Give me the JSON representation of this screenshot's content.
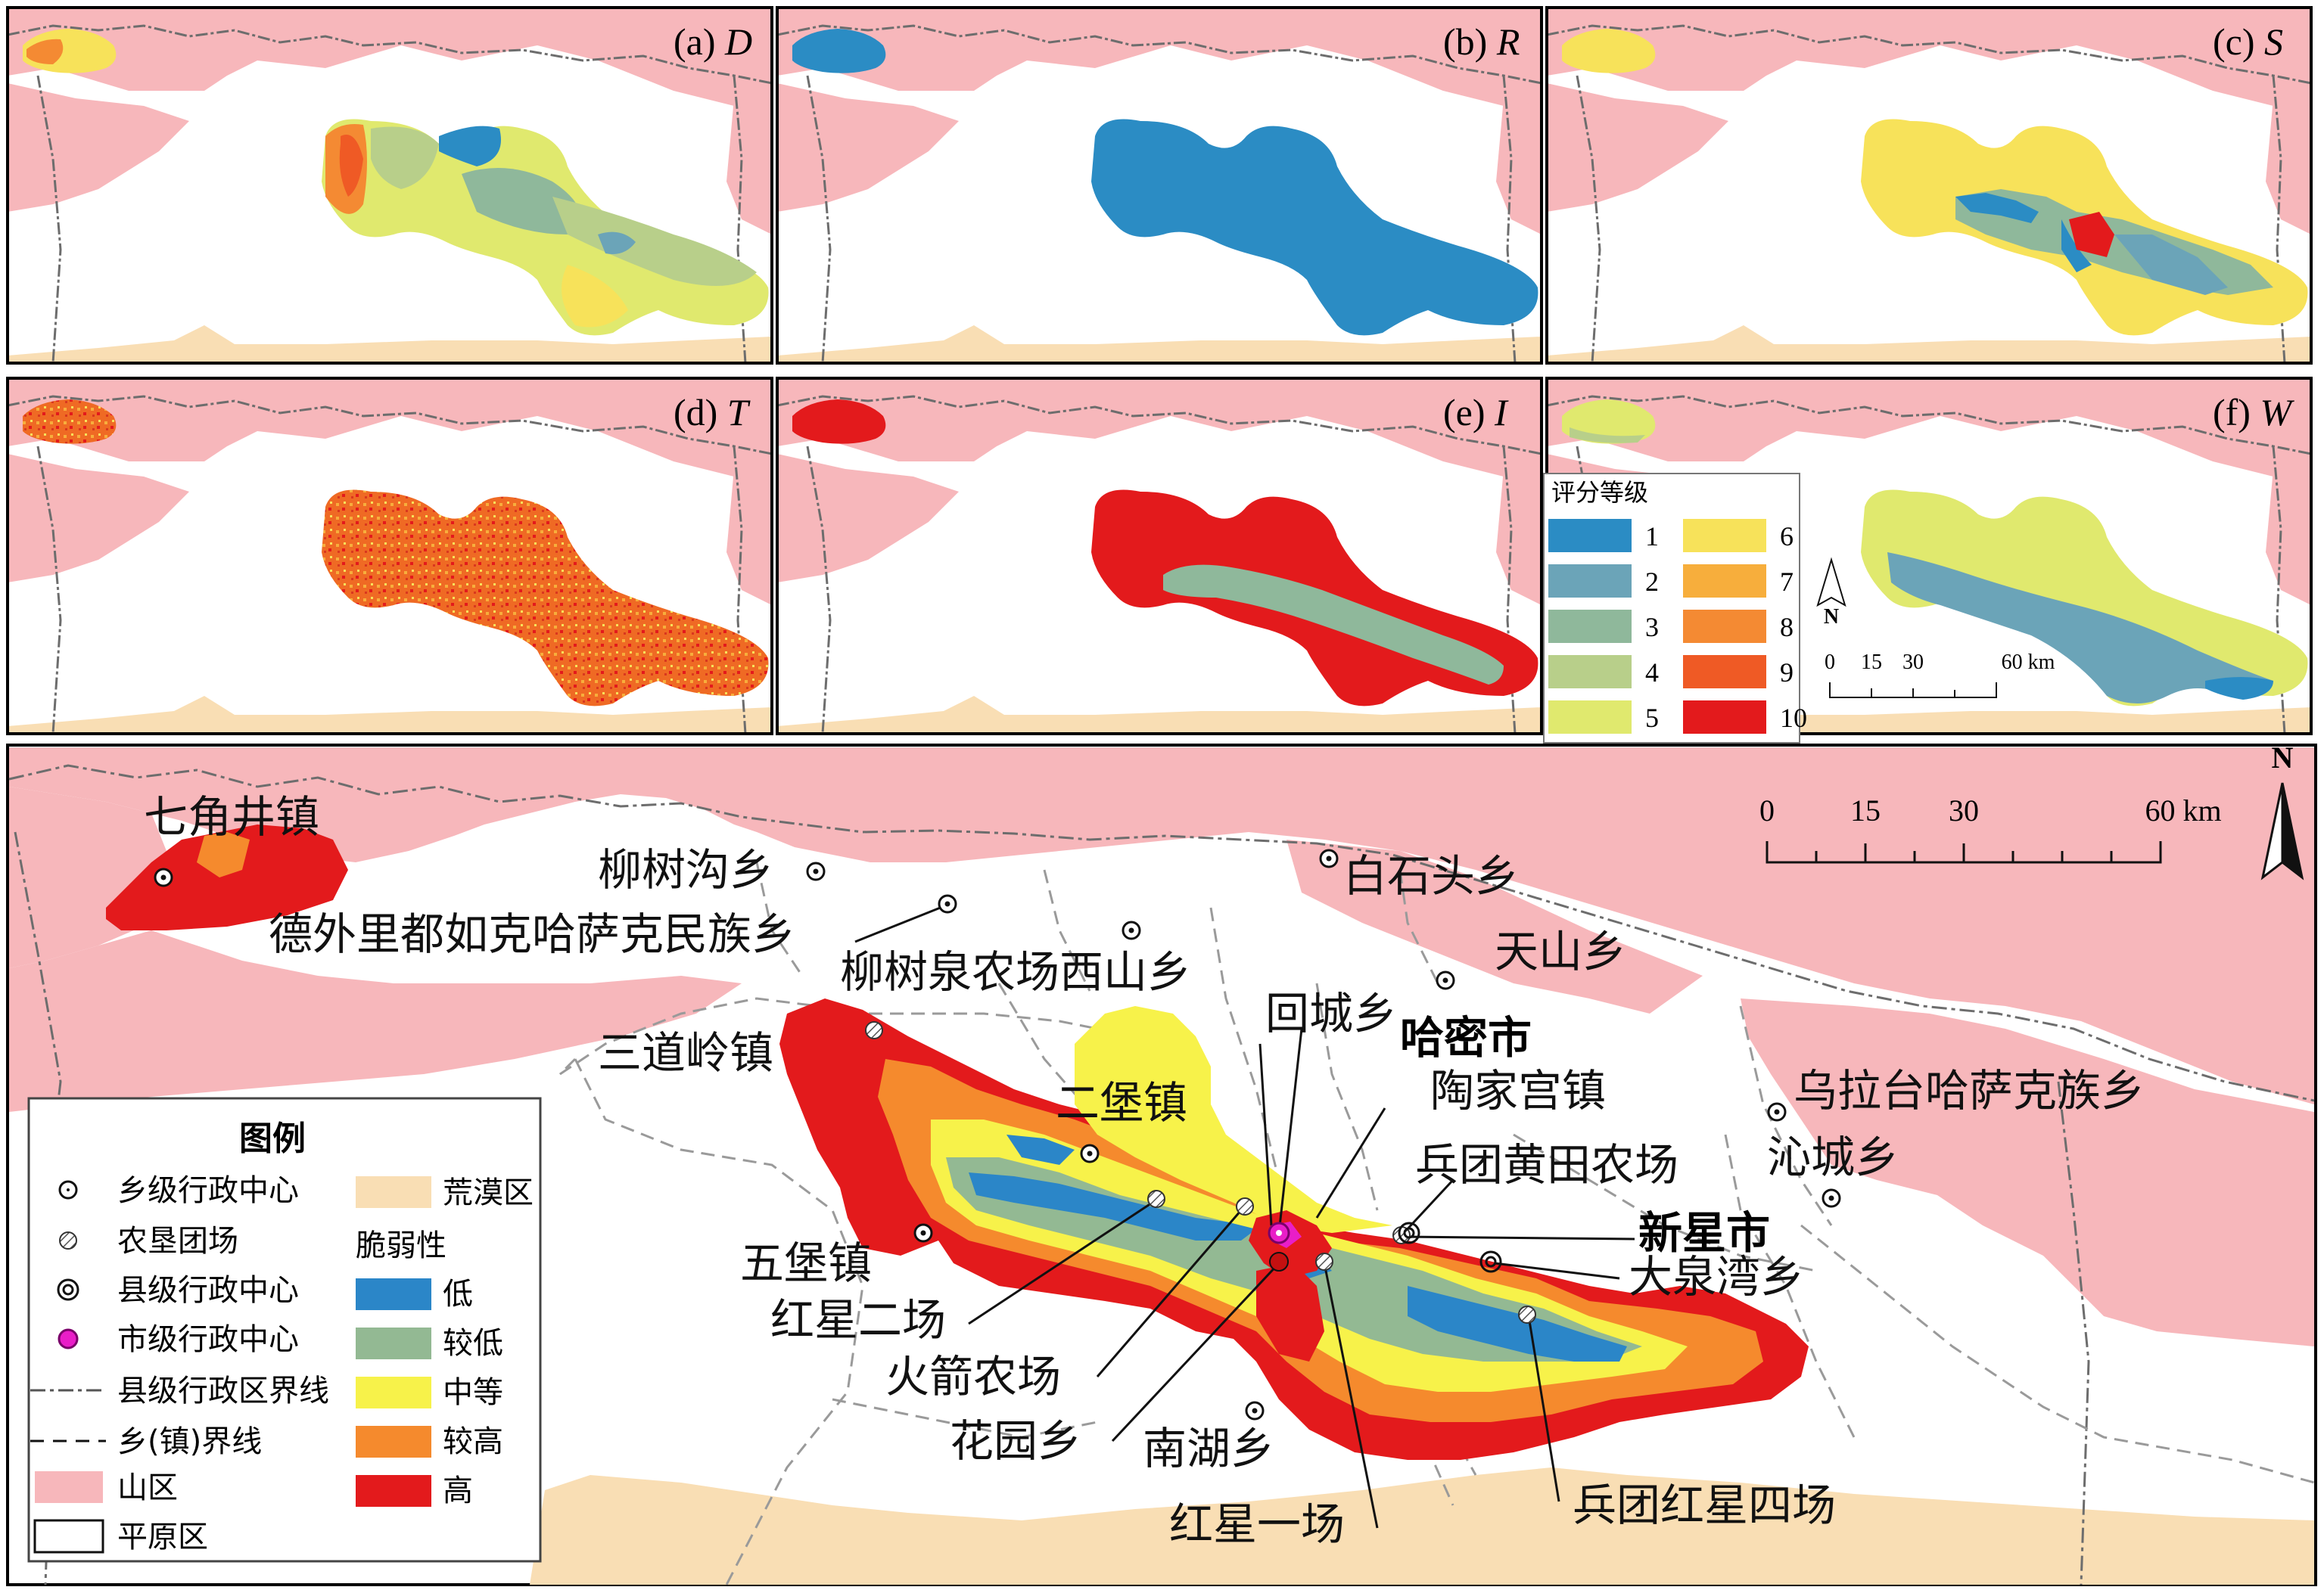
{
  "colors": {
    "mountain": "#f7b7bb",
    "desert": "#f9deb4",
    "plain": "#ffffff",
    "grade": [
      "#2b8cc4",
      "#6ba4b8",
      "#8fb89b",
      "#b8cf8a",
      "#e0e96e",
      "#f7e25a",
      "#f7ae3c",
      "#f48a33",
      "#ef5a25",
      "#e31a1c"
    ],
    "vulnerability": [
      "#2b86c8",
      "#93b993",
      "#f7f24a",
      "#f58a2d",
      "#e31a1c"
    ],
    "city_center": "#e91ec8"
  },
  "panels": [
    {
      "id": "a",
      "label": "(a) ",
      "var": "D"
    },
    {
      "id": "b",
      "label": "(b) ",
      "var": "R"
    },
    {
      "id": "c",
      "label": "(c) ",
      "var": "S"
    },
    {
      "id": "d",
      "label": "(d) ",
      "var": "T"
    },
    {
      "id": "e",
      "label": "(e) ",
      "var": "I"
    },
    {
      "id": "f",
      "label": "(f) ",
      "var": "W"
    }
  ],
  "grade_legend": {
    "title": "评分等级",
    "items": [
      "1",
      "2",
      "3",
      "4",
      "5",
      "6",
      "7",
      "8",
      "9",
      "10"
    ]
  },
  "small_scale": {
    "labels": [
      "0",
      "15",
      "30",
      "60 km"
    ],
    "north": "N"
  },
  "main_scale": {
    "labels": [
      "0",
      "15",
      "30",
      "60 km"
    ],
    "north": "N"
  },
  "place_names": [
    {
      "text": "七角井镇",
      "bold": false
    },
    {
      "text": "柳树沟乡",
      "bold": false
    },
    {
      "text": "白石头乡",
      "bold": false
    },
    {
      "text": "德外里都如克哈萨克民族乡",
      "bold": false
    },
    {
      "text": "天山乡",
      "bold": false
    },
    {
      "text": "柳树泉农场西山乡",
      "bold": false
    },
    {
      "text": "回城乡",
      "bold": false
    },
    {
      "text": "哈密市",
      "bold": true
    },
    {
      "text": "三道岭镇",
      "bold": false
    },
    {
      "text": "陶家宫镇",
      "bold": false
    },
    {
      "text": "乌拉台哈萨克族乡",
      "bold": false
    },
    {
      "text": "二堡镇",
      "bold": false
    },
    {
      "text": "兵团黄田农场",
      "bold": false
    },
    {
      "text": "沁城乡",
      "bold": false
    },
    {
      "text": "新星市",
      "bold": true
    },
    {
      "text": "五堡镇",
      "bold": false
    },
    {
      "text": "大泉湾乡",
      "bold": false
    },
    {
      "text": "红星二场",
      "bold": false
    },
    {
      "text": "火箭农场",
      "bold": false
    },
    {
      "text": "花园乡",
      "bold": false
    },
    {
      "text": "南湖乡",
      "bold": false
    },
    {
      "text": "兵团红星四场",
      "bold": false
    },
    {
      "text": "红星一场",
      "bold": false
    }
  ],
  "legend": {
    "title": "图例",
    "symbols": [
      {
        "label": "乡级行政中心",
        "icon": "township-center-icon"
      },
      {
        "label": "农垦团场",
        "icon": "farm-regiment-icon"
      },
      {
        "label": "县级行政中心",
        "icon": "county-center-icon"
      },
      {
        "label": "市级行政中心",
        "icon": "city-center-icon"
      },
      {
        "label": "县级行政区界线",
        "icon": "county-boundary-line"
      },
      {
        "label": "乡(镇)界线",
        "icon": "township-boundary-line"
      },
      {
        "label": "山区",
        "icon": "mountain-area-swatch"
      },
      {
        "label": "平原区",
        "icon": "plain-area-swatch"
      }
    ],
    "desert_label": "荒漠区",
    "vulnerability_title": "脆弱性",
    "vulnerability_levels": [
      "低",
      "较低",
      "中等",
      "较高",
      "高"
    ]
  }
}
